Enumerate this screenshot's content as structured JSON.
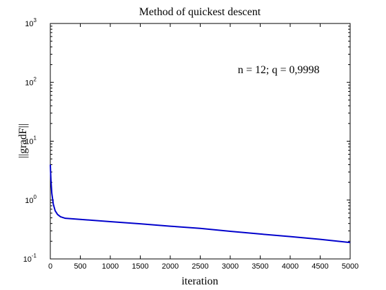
{
  "chart_data": {
    "type": "line",
    "title": "Method of quickest descent",
    "xlabel": "iteration",
    "ylabel": "||gradF||",
    "annotation": "n = 12; q = 0,9998",
    "xlim": [
      0,
      5000
    ],
    "ylim": [
      0.1,
      1000
    ],
    "yscale": "log",
    "grid": false,
    "x_ticks": [
      0,
      500,
      1000,
      1500,
      2000,
      2500,
      3000,
      3500,
      4000,
      4500,
      5000
    ],
    "y_ticks": [
      {
        "value": 0.1,
        "base": "10",
        "exp": "-1"
      },
      {
        "value": 1,
        "base": "10",
        "exp": "0"
      },
      {
        "value": 10,
        "base": "10",
        "exp": "1"
      },
      {
        "value": 100,
        "base": "10",
        "exp": "2"
      },
      {
        "value": 1000,
        "base": "10",
        "exp": "3"
      }
    ],
    "series": [
      {
        "color": "#0000cc",
        "x": [
          0,
          10,
          25,
          50,
          80,
          120,
          170,
          250,
          500,
          1000,
          1500,
          2000,
          2500,
          3000,
          3500,
          4000,
          4500,
          5000
        ],
        "y": [
          4.0,
          2.2,
          1.3,
          0.85,
          0.66,
          0.57,
          0.52,
          0.49,
          0.47,
          0.43,
          0.395,
          0.36,
          0.33,
          0.295,
          0.265,
          0.24,
          0.215,
          0.19
        ]
      }
    ]
  }
}
